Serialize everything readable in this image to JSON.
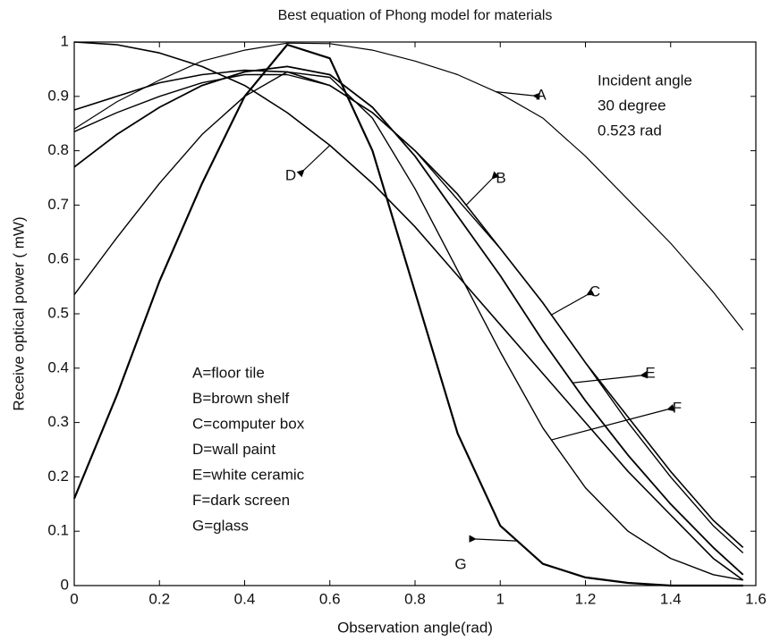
{
  "chart_data": {
    "type": "line",
    "title": "Best equation of Phong model for materials",
    "x_label": "Observation angle(rad)",
    "y_label": "Receive optical power ( mW)",
    "xlim": [
      0,
      1.6
    ],
    "ylim": [
      0,
      1
    ],
    "xticks": [
      0,
      0.2,
      0.4,
      0.6,
      0.8,
      1,
      1.2,
      1.4,
      1.6
    ],
    "yticks": [
      0,
      0.1,
      0.2,
      0.3,
      0.4,
      0.5,
      0.6,
      0.7,
      0.8,
      0.9,
      1
    ],
    "grid": false,
    "annotations": [
      "Incident angle",
      "30 degree",
      "0.523 rad"
    ],
    "x": [
      0,
      0.1,
      0.2,
      0.3,
      0.4,
      0.5,
      0.6,
      0.7,
      0.8,
      0.9,
      1.0,
      1.1,
      1.2,
      1.3,
      1.4,
      1.5,
      1.57
    ],
    "series": [
      {
        "name": "A=floor tile",
        "label": "A",
        "color": "#000000",
        "values": [
          0.84,
          0.89,
          0.93,
          0.965,
          0.985,
          0.998,
          0.997,
          0.985,
          0.965,
          0.94,
          0.905,
          0.86,
          0.79,
          0.71,
          0.63,
          0.54,
          0.47
        ]
      },
      {
        "name": "B=brown shelf",
        "label": "B",
        "color": "#000000",
        "values": [
          0.875,
          0.9,
          0.925,
          0.94,
          0.948,
          0.945,
          0.92,
          0.87,
          0.8,
          0.72,
          0.62,
          0.52,
          0.41,
          0.31,
          0.21,
          0.12,
          0.07
        ]
      },
      {
        "name": "C=computer box",
        "label": "C",
        "color": "#000000",
        "values": [
          0.835,
          0.87,
          0.9,
          0.925,
          0.94,
          0.94,
          0.92,
          0.87,
          0.8,
          0.71,
          0.62,
          0.52,
          0.41,
          0.3,
          0.2,
          0.11,
          0.06
        ]
      },
      {
        "name": "D=wall paint",
        "label": "D",
        "color": "#000000",
        "values": [
          1.0,
          0.995,
          0.98,
          0.955,
          0.92,
          0.87,
          0.81,
          0.74,
          0.66,
          0.57,
          0.48,
          0.39,
          0.3,
          0.21,
          0.13,
          0.05,
          0.01
        ]
      },
      {
        "name": "E=white ceramic",
        "label": "E",
        "color": "#000000",
        "values": [
          0.77,
          0.83,
          0.88,
          0.92,
          0.945,
          0.955,
          0.94,
          0.88,
          0.79,
          0.68,
          0.57,
          0.45,
          0.34,
          0.24,
          0.15,
          0.07,
          0.02
        ]
      },
      {
        "name": "F=dark screen",
        "label": "F",
        "color": "#000000",
        "values": [
          0.535,
          0.64,
          0.74,
          0.83,
          0.9,
          0.945,
          0.935,
          0.86,
          0.73,
          0.58,
          0.43,
          0.29,
          0.18,
          0.1,
          0.05,
          0.02,
          0.01
        ]
      },
      {
        "name": "G=glass",
        "label": "G",
        "color": "#000000",
        "values": [
          0.16,
          0.35,
          0.56,
          0.74,
          0.9,
          0.995,
          0.97,
          0.8,
          0.54,
          0.28,
          0.11,
          0.04,
          0.015,
          0.005,
          0,
          0,
          0
        ]
      }
    ]
  }
}
